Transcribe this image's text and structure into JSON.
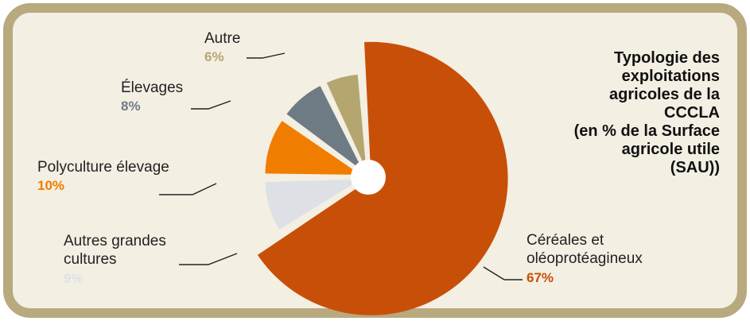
{
  "title": "Typologie des\nexploitations\nagricoles de la\nCCCLA\n(en % de la Surface\nagricole utile\n(SAU))",
  "colors": {
    "frame_outer": "#b8a97e",
    "frame_inner": "#f3efe3",
    "hole": "#ffffff"
  },
  "chart_data": {
    "type": "pie",
    "title": "Typologie des exploitations agricoles de la CCCLA (en % de la Surface agricole utile (SAU))",
    "unit": "%",
    "slices": [
      {
        "name": "Céréales et\noléoprotéagineux",
        "value": 67,
        "label": "67%",
        "color": "#c84f08"
      },
      {
        "name": "Autres grandes\ncultures",
        "value": 9,
        "label": "9%",
        "color": "#dde1e6"
      },
      {
        "name": "Polyculture élevage",
        "value": 10,
        "label": "10%",
        "color": "#f07d00"
      },
      {
        "name": "Élevages",
        "value": 8,
        "label": "8%",
        "color": "#6e7b84"
      },
      {
        "name": "Autre",
        "value": 6,
        "label": "6%",
        "color": "#b5a670"
      }
    ],
    "legend": "callout labels",
    "grid": false
  }
}
